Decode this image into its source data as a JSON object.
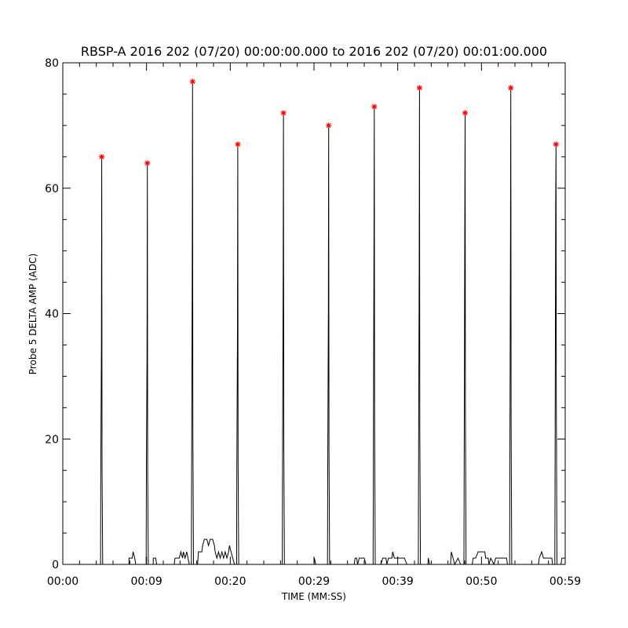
{
  "chart_data": {
    "type": "line",
    "title": "RBSP-A 2016 202 (07/20) 00:00:00.000 to 2016 202 (07/20) 00:01:00.000",
    "xlabel": "TIME (MM:SS)",
    "ylabel": "Probe 5 DELTA AMP (ADC)",
    "xlim": [
      0,
      60
    ],
    "ylim": [
      0,
      80
    ],
    "x_tick_labels": [
      {
        "t": 0,
        "label": "00:00"
      },
      {
        "t": 10,
        "label": "00:09"
      },
      {
        "t": 20,
        "label": "00:20"
      },
      {
        "t": 30,
        "label": "00:29"
      },
      {
        "t": 40,
        "label": "00:39"
      },
      {
        "t": 50,
        "label": "00:50"
      },
      {
        "t": 60,
        "label": "00:59"
      }
    ],
    "y_ticks": [
      0,
      20,
      40,
      60,
      80
    ],
    "grid": false,
    "colors": {
      "line": "#000000",
      "peak_marker": "#ff0000"
    },
    "spikes": [
      {
        "t": 4.65,
        "mid": 35,
        "peak": 65
      },
      {
        "t": 10.1,
        "mid": 34,
        "peak": 64
      },
      {
        "t": 15.5,
        "mid": 47,
        "peak": 77
      },
      {
        "t": 20.9,
        "mid": 37,
        "peak": 67
      },
      {
        "t": 26.35,
        "mid": 46,
        "peak": 72
      },
      {
        "t": 31.75,
        "mid": 40,
        "peak": 70
      },
      {
        "t": 37.2,
        "mid": 51,
        "peak": 73
      },
      {
        "t": 42.6,
        "mid": 47,
        "peak": 76
      },
      {
        "t": 48.05,
        "mid": 55,
        "peak": 72
      },
      {
        "t": 53.5,
        "mid": 51,
        "peak": 76
      },
      {
        "t": 58.9,
        "mid": 58,
        "peak": 67
      }
    ],
    "baseline_segments": [
      [
        [
          7.9,
          0
        ],
        [
          7.9,
          1
        ],
        [
          8.3,
          1
        ],
        [
          8.4,
          2
        ],
        [
          8.6,
          1
        ],
        [
          8.7,
          0
        ]
      ],
      [
        [
          10.8,
          0
        ],
        [
          10.8,
          1
        ],
        [
          11.1,
          1
        ],
        [
          11.2,
          0
        ]
      ],
      [
        [
          13.3,
          0
        ],
        [
          13.4,
          1
        ],
        [
          13.9,
          1
        ],
        [
          14.1,
          2
        ],
        [
          14.3,
          1
        ],
        [
          14.4,
          2
        ],
        [
          14.6,
          1
        ],
        [
          14.8,
          2
        ],
        [
          14.95,
          1
        ],
        [
          15.1,
          0
        ]
      ],
      [
        [
          16.1,
          0
        ],
        [
          16.2,
          2
        ],
        [
          16.6,
          2
        ],
        [
          16.7,
          3
        ],
        [
          16.9,
          4
        ],
        [
          17.2,
          4
        ],
        [
          17.4,
          3
        ],
        [
          17.6,
          4
        ],
        [
          17.9,
          4
        ],
        [
          18.1,
          3
        ],
        [
          18.2,
          2
        ],
        [
          18.4,
          1
        ],
        [
          18.6,
          2
        ],
        [
          18.8,
          1
        ],
        [
          19.0,
          2
        ],
        [
          19.2,
          1
        ],
        [
          19.4,
          2
        ],
        [
          19.6,
          1
        ],
        [
          19.8,
          2
        ],
        [
          19.9,
          3
        ],
        [
          20.1,
          2
        ],
        [
          20.3,
          1
        ],
        [
          20.5,
          0
        ]
      ],
      [
        [
          30.0,
          0
        ],
        [
          30.05,
          1
        ],
        [
          30.2,
          0
        ]
      ],
      [
        [
          34.8,
          0
        ],
        [
          34.9,
          1
        ],
        [
          35.1,
          1
        ],
        [
          35.2,
          0
        ],
        [
          35.4,
          1
        ],
        [
          36.0,
          1
        ],
        [
          36.2,
          0
        ]
      ],
      [
        [
          38.0,
          0
        ],
        [
          38.2,
          1
        ],
        [
          38.6,
          1
        ],
        [
          38.7,
          0
        ],
        [
          38.9,
          1
        ],
        [
          39.3,
          1
        ],
        [
          39.4,
          2
        ],
        [
          39.6,
          1
        ],
        [
          40.8,
          1
        ],
        [
          41.1,
          0
        ]
      ],
      [
        [
          43.6,
          0
        ],
        [
          43.65,
          1
        ],
        [
          43.8,
          0
        ]
      ],
      [
        [
          46.3,
          0
        ],
        [
          46.4,
          2
        ],
        [
          46.6,
          1
        ],
        [
          46.8,
          0
        ],
        [
          47.2,
          1
        ],
        [
          47.5,
          0
        ]
      ],
      [
        [
          48.9,
          0
        ],
        [
          49.0,
          1
        ],
        [
          49.3,
          1
        ],
        [
          49.6,
          2
        ],
        [
          50.4,
          2
        ],
        [
          50.5,
          1
        ],
        [
          50.8,
          1
        ],
        [
          50.9,
          0
        ],
        [
          51.1,
          1
        ],
        [
          51.5,
          0
        ],
        [
          51.7,
          1
        ],
        [
          53.0,
          1
        ],
        [
          53.1,
          0
        ]
      ],
      [
        [
          56.8,
          0
        ],
        [
          56.9,
          1
        ],
        [
          57.2,
          2
        ],
        [
          57.4,
          1
        ],
        [
          58.4,
          1
        ],
        [
          58.5,
          0
        ]
      ],
      [
        [
          59.5,
          0
        ],
        [
          59.6,
          1
        ],
        [
          60.0,
          1
        ]
      ]
    ]
  }
}
